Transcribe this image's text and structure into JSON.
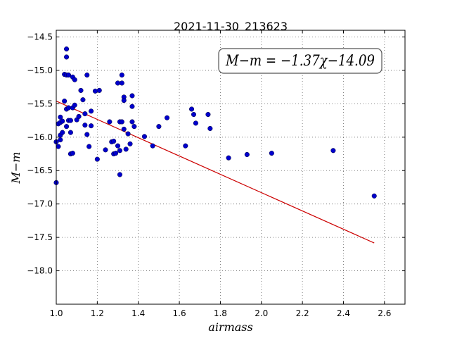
{
  "chart_data": {
    "type": "scatter",
    "title": "2021-11-30_213623",
    "xlabel": "airmass",
    "ylabel": "M−m",
    "xlim": [
      1.0,
      2.7
    ],
    "ylim": [
      -18.5,
      -14.4
    ],
    "grid": true,
    "x_ticks": [
      1.0,
      1.2,
      1.4,
      1.6,
      1.8,
      2.0,
      2.2,
      2.4,
      2.6
    ],
    "x_tick_labels": [
      "1.0",
      "1.2",
      "1.4",
      "1.6",
      "1.8",
      "2.0",
      "2.2",
      "2.4",
      "2.6"
    ],
    "y_ticks": [
      -14.5,
      -15.0,
      -15.5,
      -16.0,
      -16.5,
      -17.0,
      -17.5,
      -18.0
    ],
    "y_tick_labels": [
      "−14.5",
      "−15.0",
      "−15.5",
      "−16.0",
      "−16.5",
      "−17.0",
      "−17.5",
      "−18.0"
    ],
    "annotation": "M−m = −1.37χ−14.09",
    "point_color": "#0000cc",
    "fit_color": "#cc0000",
    "points": [
      [
        1.0,
        -16.07
      ],
      [
        1.0,
        -16.68
      ],
      [
        1.01,
        -16.14
      ],
      [
        1.01,
        -15.8
      ],
      [
        1.02,
        -15.7
      ],
      [
        1.02,
        -15.78
      ],
      [
        1.02,
        -15.97
      ],
      [
        1.02,
        -16.04
      ],
      [
        1.03,
        -15.93
      ],
      [
        1.03,
        -15.76
      ],
      [
        1.04,
        -15.46
      ],
      [
        1.04,
        -15.06
      ],
      [
        1.05,
        -15.07
      ],
      [
        1.05,
        -15.84
      ],
      [
        1.05,
        -14.68
      ],
      [
        1.05,
        -14.8
      ],
      [
        1.05,
        -15.58
      ],
      [
        1.06,
        -15.07
      ],
      [
        1.06,
        -15.75
      ],
      [
        1.06,
        -15.56
      ],
      [
        1.07,
        -15.75
      ],
      [
        1.07,
        -16.25
      ],
      [
        1.07,
        -15.93
      ],
      [
        1.08,
        -15.56
      ],
      [
        1.08,
        -16.24
      ],
      [
        1.08,
        -15.1
      ],
      [
        1.09,
        -15.14
      ],
      [
        1.09,
        -15.52
      ],
      [
        1.1,
        -15.74
      ],
      [
        1.11,
        -15.69
      ],
      [
        1.12,
        -15.3
      ],
      [
        1.13,
        -15.44
      ],
      [
        1.14,
        -15.82
      ],
      [
        1.14,
        -15.65
      ],
      [
        1.15,
        -15.07
      ],
      [
        1.15,
        -15.96
      ],
      [
        1.16,
        -16.14
      ],
      [
        1.17,
        -15.83
      ],
      [
        1.17,
        -15.61
      ],
      [
        1.19,
        -15.31
      ],
      [
        1.2,
        -16.33
      ],
      [
        1.21,
        -15.3
      ],
      [
        1.24,
        -16.19
      ],
      [
        1.26,
        -15.77
      ],
      [
        1.27,
        -16.07
      ],
      [
        1.28,
        -16.25
      ],
      [
        1.28,
        -16.06
      ],
      [
        1.29,
        -16.24
      ],
      [
        1.3,
        -15.19
      ],
      [
        1.3,
        -16.13
      ],
      [
        1.31,
        -16.2
      ],
      [
        1.31,
        -16.56
      ],
      [
        1.31,
        -15.77
      ],
      [
        1.32,
        -15.77
      ],
      [
        1.32,
        -15.19
      ],
      [
        1.32,
        -15.07
      ],
      [
        1.33,
        -15.4
      ],
      [
        1.33,
        -15.45
      ],
      [
        1.33,
        -15.88
      ],
      [
        1.34,
        -16.18
      ],
      [
        1.35,
        -15.95
      ],
      [
        1.36,
        -16.1
      ],
      [
        1.37,
        -15.38
      ],
      [
        1.37,
        -15.54
      ],
      [
        1.37,
        -15.77
      ],
      [
        1.38,
        -15.84
      ],
      [
        1.43,
        -15.99
      ],
      [
        1.47,
        -16.13
      ],
      [
        1.5,
        -15.84
      ],
      [
        1.54,
        -15.71
      ],
      [
        1.63,
        -16.13
      ],
      [
        1.66,
        -15.58
      ],
      [
        1.67,
        -15.66
      ],
      [
        1.68,
        -15.79
      ],
      [
        1.74,
        -15.66
      ],
      [
        1.75,
        -15.87
      ],
      [
        1.84,
        -16.31
      ],
      [
        1.93,
        -16.26
      ],
      [
        2.05,
        -16.24
      ],
      [
        2.35,
        -16.2
      ],
      [
        2.55,
        -16.88
      ]
    ],
    "fit_line": {
      "slope": -1.37,
      "intercept": -14.09,
      "x_range": [
        1.0,
        2.55
      ]
    }
  }
}
